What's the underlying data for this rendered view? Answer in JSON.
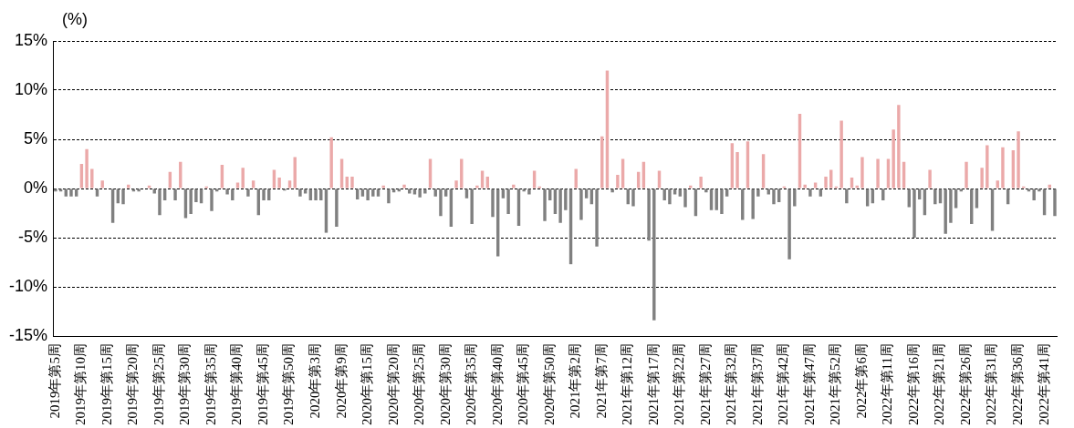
{
  "chart_data": {
    "type": "bar",
    "ylabel": "(%)",
    "categories": [
      "2019年第5周",
      null,
      null,
      null,
      null,
      "2019年第10周",
      null,
      null,
      null,
      null,
      "2019年第15周",
      null,
      null,
      null,
      null,
      "2019年第20周",
      null,
      null,
      null,
      null,
      "2019年第25周",
      null,
      null,
      null,
      null,
      "2019年第30周",
      null,
      null,
      null,
      null,
      "2019年第35周",
      null,
      null,
      null,
      null,
      "2019年第40周",
      null,
      null,
      null,
      null,
      "2019年第45周",
      null,
      null,
      null,
      null,
      "2019年第50周",
      null,
      null,
      null,
      null,
      "2020年第3周",
      null,
      null,
      null,
      null,
      "2020年第9周",
      null,
      null,
      null,
      null,
      "2020年第15周",
      null,
      null,
      null,
      null,
      "2020年第20周",
      null,
      null,
      null,
      null,
      "2020年第25周",
      null,
      null,
      null,
      null,
      "2020年第30周",
      null,
      null,
      null,
      null,
      "2020年第35周",
      null,
      null,
      null,
      null,
      "2020年第40周",
      null,
      null,
      null,
      null,
      "2020年第45周",
      null,
      null,
      null,
      null,
      "2020年第50周",
      null,
      null,
      null,
      null,
      "2021年第2周",
      null,
      null,
      null,
      null,
      "2021年第7周",
      null,
      null,
      null,
      null,
      "2021年第12周",
      null,
      null,
      null,
      null,
      "2021年第17周",
      null,
      null,
      null,
      null,
      "2021年第22周",
      null,
      null,
      null,
      null,
      "2021年第27周",
      null,
      null,
      null,
      null,
      "2021年第32周",
      null,
      null,
      null,
      null,
      "2021年第37周",
      null,
      null,
      null,
      null,
      "2021年第42周",
      null,
      null,
      null,
      null,
      "2021年第47周",
      null,
      null,
      null,
      null,
      "2021年第52周",
      null,
      null,
      null,
      null,
      "2022年第6周",
      null,
      null,
      null,
      null,
      "2022年第11周",
      null,
      null,
      null,
      null,
      "2022年第16周",
      null,
      null,
      null,
      null,
      "2022年第21周",
      null,
      null,
      null,
      null,
      "2022年第26周",
      null,
      null,
      null,
      null,
      "2022年第31周",
      null,
      null,
      null,
      null,
      "2022年第36周",
      null,
      null,
      null,
      null,
      "2022年第41周",
      null,
      null
    ],
    "values": [
      -0.3,
      -0.3,
      -0.8,
      -0.8,
      -0.8,
      2.5,
      4.0,
      2.0,
      -0.8,
      0.8,
      0,
      -3.5,
      -1.5,
      -1.6,
      0.4,
      -0.3,
      -0.3,
      0,
      0.3,
      -0.5,
      -2.7,
      -1.2,
      1.7,
      -1.2,
      2.7,
      -3.0,
      -2.6,
      -1.4,
      -1.5,
      0.2,
      -2.3,
      -0.3,
      2.4,
      -0.6,
      -1.2,
      0.6,
      2.1,
      -0.8,
      0.8,
      -2.7,
      -1.2,
      -1.2,
      1.9,
      1.1,
      -0.2,
      0.8,
      3.2,
      -0.8,
      -0.5,
      -1.2,
      -1.2,
      -1.2,
      -4.5,
      5.2,
      -3.9,
      3.0,
      1.2,
      1.2,
      -1.1,
      -0.8,
      -1.2,
      -0.8,
      -0.8,
      0.3,
      -1.5,
      -0.4,
      -0.3,
      0.4,
      -0.5,
      -0.6,
      -0.9,
      -0.5,
      3.0,
      -0.8,
      -2.8,
      -0.8,
      -3.9,
      0.8,
      3.0,
      -1.0,
      -3.6,
      0.3,
      1.8,
      1.2,
      -2.9,
      -6.9,
      -1.0,
      -2.6,
      0.4,
      -3.8,
      -0.3,
      -0.6,
      1.8,
      0.2,
      -3.3,
      -1.2,
      -2.6,
      -3.5,
      -2.2,
      -7.7,
      2.0,
      -3.2,
      -1.0,
      -1.6,
      -5.9,
      5.3,
      12.0,
      -0.4,
      1.4,
      3.0,
      -1.6,
      -1.8,
      1.7,
      2.7,
      -5.3,
      -13.4,
      1.8,
      -1.2,
      -1.6,
      -0.6,
      -0.8,
      -1.9,
      0.3,
      -2.8,
      1.2,
      -0.4,
      -2.2,
      -2.2,
      -2.6,
      -0.8,
      4.6,
      3.7,
      -3.2,
      4.8,
      -3.1,
      -0.8,
      3.5,
      -0.6,
      -1.6,
      -1.4,
      0.2,
      -7.2,
      -1.8,
      7.6,
      0.4,
      -0.8,
      0.6,
      -0.8,
      1.2,
      1.9,
      0.2,
      6.9,
      -1.5,
      1.1,
      0.3,
      3.2,
      -1.8,
      -1.5,
      3.0,
      -1.2,
      3.0,
      6.0,
      8.5,
      2.7,
      -1.9,
      -5.0,
      -1.1,
      -2.7,
      1.9,
      -1.6,
      -1.5,
      -4.6,
      -3.5,
      -2.0,
      -0.3,
      2.7,
      -3.6,
      -2.0,
      2.1,
      4.4,
      -4.3,
      0.8,
      4.2,
      -1.6,
      3.9,
      5.8,
      0.2,
      -0.3,
      -1.2,
      -0.3,
      -2.7,
      0.4,
      -2.8
    ],
    "colors": [
      "#808080",
      "#808080",
      "#808080",
      "#808080",
      "#808080",
      "#eba9a9",
      "#eba9a9",
      "#eba9a9",
      "#808080",
      "#eba9a9",
      "#eba9a9",
      "#808080",
      "#808080",
      "#808080",
      "#eba9a9",
      "#808080",
      "#808080",
      "#eba9a9",
      "#eba9a9",
      "#808080",
      "#808080",
      "#808080",
      "#eba9a9",
      "#808080",
      "#eba9a9",
      "#808080",
      "#808080",
      "#808080",
      "#808080",
      "#eba9a9",
      "#808080",
      "#808080",
      "#eba9a9",
      "#808080",
      "#808080",
      "#eba9a9",
      "#eba9a9",
      "#808080",
      "#eba9a9",
      "#808080",
      "#808080",
      "#808080",
      "#eba9a9",
      "#eba9a9",
      "#808080",
      "#eba9a9",
      "#eba9a9",
      "#808080",
      "#808080",
      "#808080",
      "#808080",
      "#808080",
      "#808080",
      "#eba9a9",
      "#808080",
      "#eba9a9",
      "#eba9a9",
      "#eba9a9",
      "#808080",
      "#808080",
      "#808080",
      "#808080",
      "#808080",
      "#eba9a9",
      "#808080",
      "#808080",
      "#808080",
      "#eba9a9",
      "#808080",
      "#808080",
      "#808080",
      "#808080",
      "#eba9a9",
      "#808080",
      "#808080",
      "#808080",
      "#808080",
      "#eba9a9",
      "#eba9a9",
      "#808080",
      "#808080",
      "#eba9a9",
      "#eba9a9",
      "#eba9a9",
      "#808080",
      "#808080",
      "#808080",
      "#808080",
      "#eba9a9",
      "#808080",
      "#808080",
      "#808080",
      "#eba9a9",
      "#eba9a9",
      "#808080",
      "#808080",
      "#808080",
      "#808080",
      "#808080",
      "#808080",
      "#eba9a9",
      "#808080",
      "#808080",
      "#808080",
      "#808080",
      "#eba9a9",
      "#eba9a9",
      "#808080",
      "#eba9a9",
      "#eba9a9",
      "#808080",
      "#808080",
      "#eba9a9",
      "#eba9a9",
      "#808080",
      "#808080",
      "#eba9a9",
      "#808080",
      "#808080",
      "#808080",
      "#808080",
      "#808080",
      "#eba9a9",
      "#808080",
      "#eba9a9",
      "#808080",
      "#808080",
      "#808080",
      "#808080",
      "#808080",
      "#eba9a9",
      "#eba9a9",
      "#808080",
      "#eba9a9",
      "#808080",
      "#808080",
      "#eba9a9",
      "#808080",
      "#808080",
      "#808080",
      "#eba9a9",
      "#808080",
      "#808080",
      "#eba9a9",
      "#eba9a9",
      "#808080",
      "#eba9a9",
      "#808080",
      "#eba9a9",
      "#eba9a9",
      "#eba9a9",
      "#eba9a9",
      "#808080",
      "#eba9a9",
      "#eba9a9",
      "#eba9a9",
      "#808080",
      "#808080",
      "#eba9a9",
      "#808080",
      "#eba9a9",
      "#eba9a9",
      "#eba9a9",
      "#eba9a9",
      "#808080",
      "#808080",
      "#808080",
      "#808080",
      "#eba9a9",
      "#808080",
      "#808080",
      "#808080",
      "#808080",
      "#808080",
      "#808080",
      "#eba9a9",
      "#808080",
      "#808080",
      "#eba9a9",
      "#eba9a9",
      "#808080",
      "#eba9a9",
      "#eba9a9",
      "#808080",
      "#eba9a9",
      "#eba9a9",
      "#eba9a9",
      "#808080",
      "#808080",
      "#808080",
      "#808080",
      "#eba9a9",
      "#808080"
    ],
    "ylim": [
      -15,
      15
    ],
    "yticks": [
      {
        "value": -15,
        "label": "-15%"
      },
      {
        "value": -10,
        "label": "-10%"
      },
      {
        "value": -5,
        "label": "-5%"
      },
      {
        "value": 0,
        "label": "0%"
      },
      {
        "value": 5,
        "label": "5%"
      },
      {
        "value": 10,
        "label": "10%"
      },
      {
        "value": 15,
        "label": "15%"
      }
    ],
    "grid": "y",
    "legend": false
  }
}
